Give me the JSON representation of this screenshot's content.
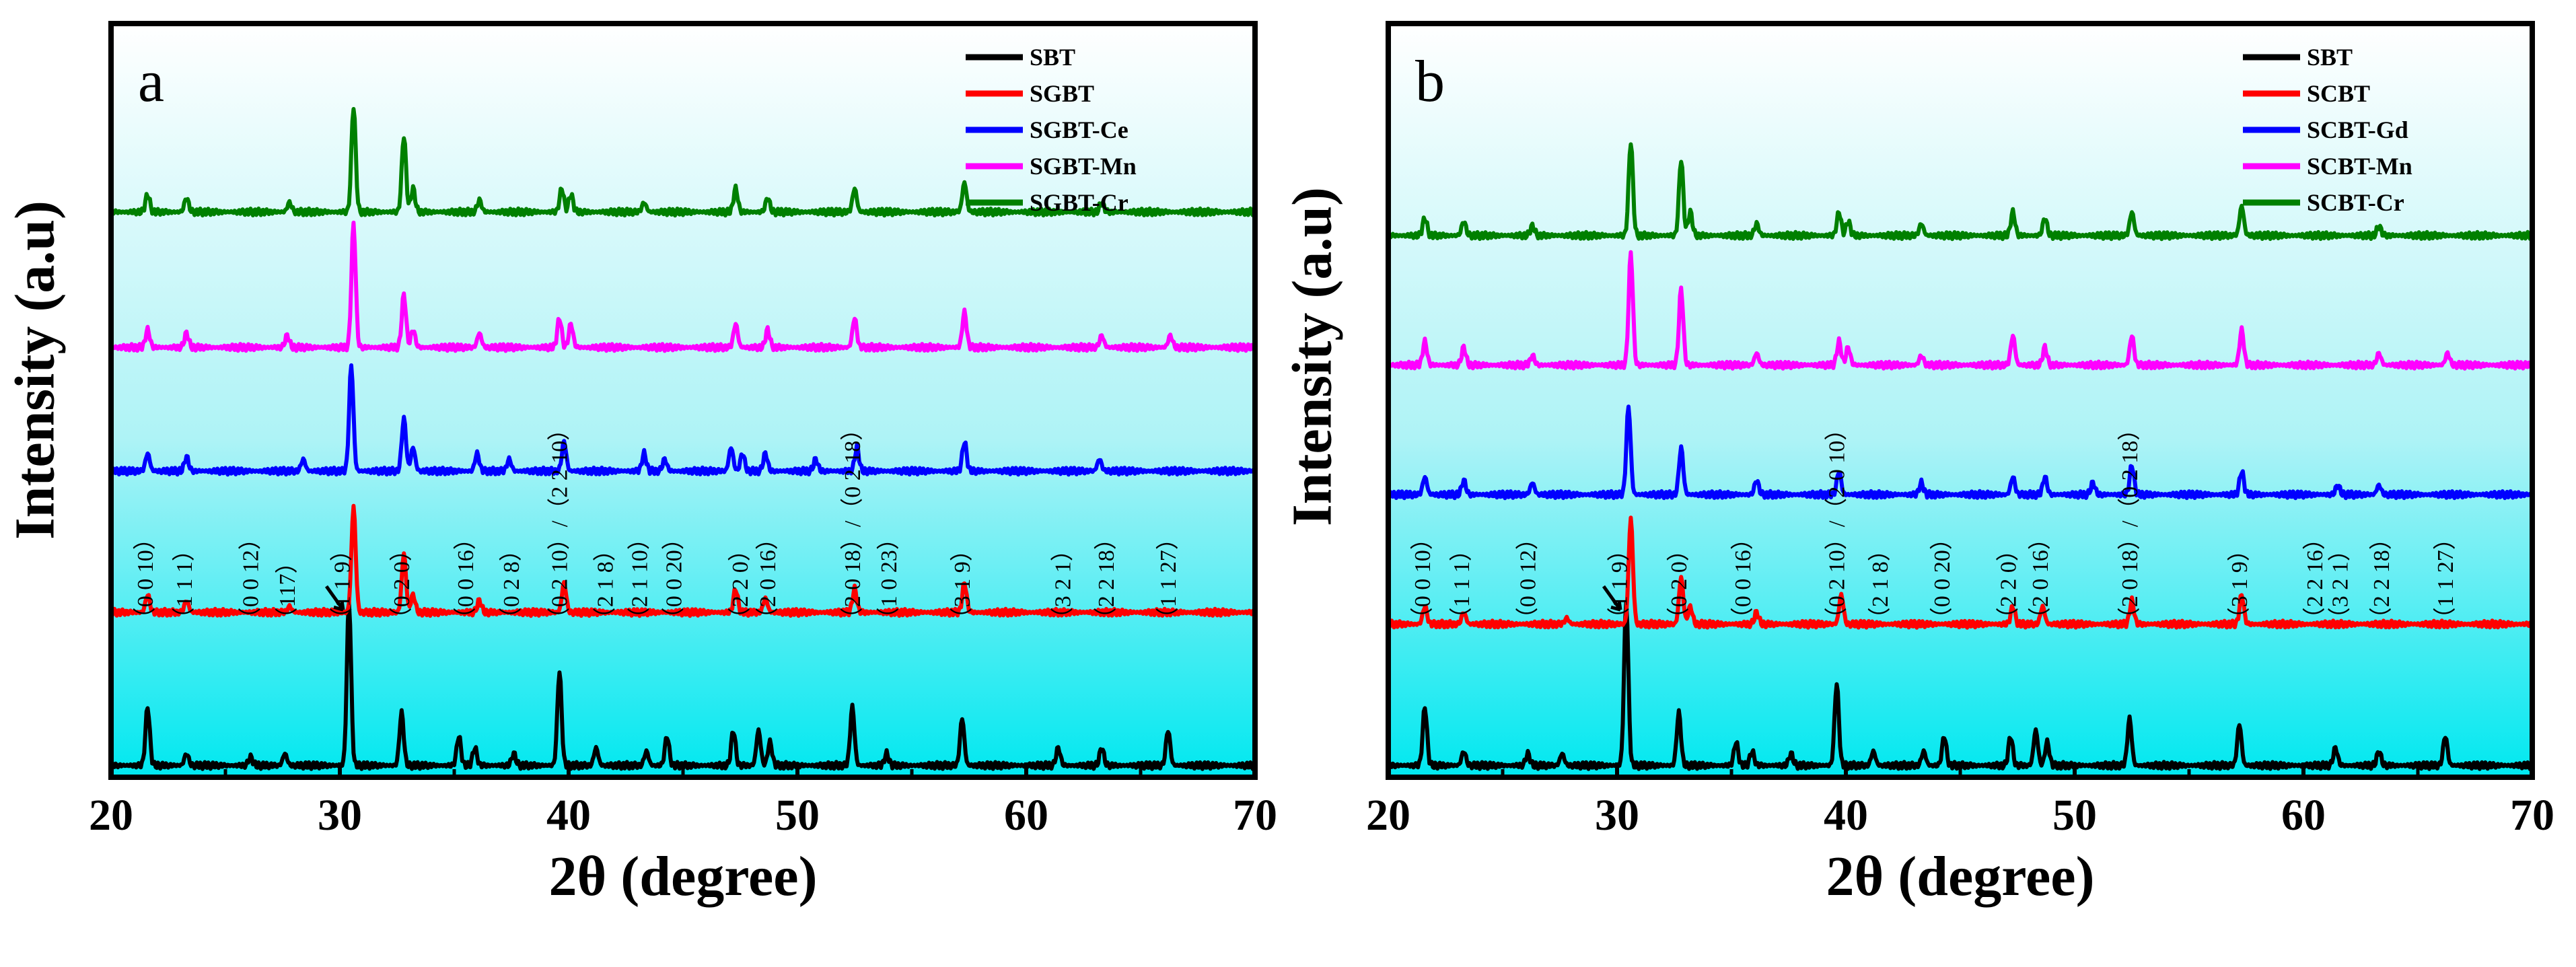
{
  "chart_data": [
    {
      "type": "line",
      "panel_label": "a",
      "xlabel": "2θ  (degree)",
      "ylabel": "Intensity  (a.u)",
      "xlim": [
        20,
        70
      ],
      "xticks": [
        20,
        30,
        40,
        50,
        60,
        70
      ],
      "xtick_labels": [
        "20",
        "30",
        "40",
        "50",
        "60",
        "70"
      ],
      "ylim": [
        0,
        6.4
      ],
      "legend_position": "top-right",
      "grid": false,
      "background": "gradient cyan (bottom) to white (top)",
      "series": [
        {
          "name": "SBT",
          "color": "#000000",
          "offset": 0.0,
          "baseline": 0.1,
          "peaks": [
            [
              21.6,
              0.5
            ],
            [
              23.3,
              0.1
            ],
            [
              26.1,
              0.07
            ],
            [
              27.6,
              0.1
            ],
            [
              30.4,
              1.4
            ],
            [
              32.7,
              0.45
            ],
            [
              35.2,
              0.25
            ],
            [
              35.9,
              0.15
            ],
            [
              37.6,
              0.1
            ],
            [
              39.6,
              0.8
            ],
            [
              41.2,
              0.15
            ],
            [
              43.4,
              0.12
            ],
            [
              44.3,
              0.25
            ],
            [
              47.2,
              0.3
            ],
            [
              48.3,
              0.3
            ],
            [
              48.8,
              0.2
            ],
            [
              52.4,
              0.5
            ],
            [
              53.9,
              0.1
            ],
            [
              57.2,
              0.4
            ],
            [
              61.4,
              0.15
            ],
            [
              63.3,
              0.15
            ],
            [
              66.2,
              0.3
            ]
          ]
        },
        {
          "name": "SGBT",
          "color": "#ff0000",
          "offset": 1.3,
          "baseline": 0.1,
          "peaks": [
            [
              21.6,
              0.15
            ],
            [
              23.3,
              0.1
            ],
            [
              27.8,
              0.05
            ],
            [
              30.6,
              0.9
            ],
            [
              32.8,
              0.5
            ],
            [
              33.2,
              0.15
            ],
            [
              36.1,
              0.1
            ],
            [
              39.8,
              0.25
            ],
            [
              47.3,
              0.2
            ],
            [
              48.6,
              0.12
            ],
            [
              52.5,
              0.2
            ],
            [
              57.3,
              0.25
            ]
          ]
        },
        {
          "name": "SGBT-Ce",
          "color": "#0000ff",
          "offset": 2.5,
          "baseline": 0.1,
          "peaks": [
            [
              21.6,
              0.15
            ],
            [
              23.3,
              0.12
            ],
            [
              28.4,
              0.1
            ],
            [
              30.5,
              0.9
            ],
            [
              32.8,
              0.45
            ],
            [
              33.2,
              0.2
            ],
            [
              36.0,
              0.15
            ],
            [
              37.4,
              0.1
            ],
            [
              39.8,
              0.25
            ],
            [
              43.3,
              0.15
            ],
            [
              44.2,
              0.1
            ],
            [
              47.1,
              0.2
            ],
            [
              47.6,
              0.15
            ],
            [
              48.6,
              0.15
            ],
            [
              50.8,
              0.1
            ],
            [
              52.6,
              0.2
            ],
            [
              57.3,
              0.25
            ],
            [
              63.2,
              0.1
            ]
          ]
        },
        {
          "name": "SGBT-Mn",
          "color": "#ff00ff",
          "offset": 3.55,
          "baseline": 0.1,
          "peaks": [
            [
              21.6,
              0.15
            ],
            [
              23.3,
              0.12
            ],
            [
              27.7,
              0.1
            ],
            [
              30.6,
              1.05
            ],
            [
              32.8,
              0.45
            ],
            [
              33.2,
              0.15
            ],
            [
              36.1,
              0.12
            ],
            [
              39.6,
              0.25
            ],
            [
              40.1,
              0.2
            ],
            [
              47.3,
              0.2
            ],
            [
              48.7,
              0.15
            ],
            [
              52.5,
              0.25
            ],
            [
              57.3,
              0.3
            ],
            [
              63.3,
              0.1
            ],
            [
              66.3,
              0.1
            ]
          ]
        },
        {
          "name": "SGBT-Cr",
          "color": "#008000",
          "offset": 4.7,
          "baseline": 0.1,
          "peaks": [
            [
              21.6,
              0.15
            ],
            [
              23.3,
              0.12
            ],
            [
              27.8,
              0.08
            ],
            [
              30.6,
              0.9
            ],
            [
              32.8,
              0.65
            ],
            [
              33.2,
              0.2
            ],
            [
              36.1,
              0.1
            ],
            [
              39.7,
              0.2
            ],
            [
              40.1,
              0.15
            ],
            [
              43.3,
              0.08
            ],
            [
              47.3,
              0.2
            ],
            [
              48.7,
              0.12
            ],
            [
              52.5,
              0.2
            ],
            [
              57.3,
              0.25
            ],
            [
              63.3,
              0.08
            ]
          ]
        }
      ],
      "annotations": [
        {
          "text": "（0 0 10）",
          "x": 21.6
        },
        {
          "text": "（1 1 1）",
          "x": 23.3
        },
        {
          "text": "（0 0 12）",
          "x": 26.2
        },
        {
          "text": "（117）",
          "x": 27.8
        },
        {
          "text": "（1 1 9）",
          "x": 30.2
        },
        {
          "text": "（0 2 0）",
          "x": 32.8
        },
        {
          "text": "（0 0 16）",
          "x": 35.6
        },
        {
          "text": "（0 2 8）",
          "x": 37.6
        },
        {
          "text": "（0 2 10）/（2 2 10）",
          "x": 39.7
        },
        {
          "text": "（2 1 8）",
          "x": 41.7
        },
        {
          "text": "（2 1 10）",
          "x": 43.2
        },
        {
          "text": "（0 0 20）",
          "x": 44.7
        },
        {
          "text": "（2 2 0）",
          "x": 47.6
        },
        {
          "text": "（2 0 16）",
          "x": 48.8
        },
        {
          "text": "（2 0 18）/（0 2 18）",
          "x": 52.5
        },
        {
          "text": "（1 0 23）",
          "x": 54.1
        },
        {
          "text": "（3 1 9）",
          "x": 57.3
        },
        {
          "text": "（3 2 1）",
          "x": 61.7
        },
        {
          "text": "（2 2 18）",
          "x": 63.6
        },
        {
          "text": "（1 1 27）",
          "x": 66.3
        }
      ]
    },
    {
      "type": "line",
      "panel_label": "b",
      "xlabel": "2θ  (degree)",
      "ylabel": "Intensity  (a.u)",
      "xlim": [
        20,
        70
      ],
      "xticks": [
        20,
        30,
        40,
        50,
        60,
        70
      ],
      "xtick_labels": [
        "20",
        "30",
        "40",
        "50",
        "60",
        "70"
      ],
      "ylim": [
        0,
        6.4
      ],
      "legend_position": "top-right",
      "grid": false,
      "background": "gradient cyan (bottom) to white (top)",
      "series": [
        {
          "name": "SBT",
          "color": "#000000",
          "offset": 0.0,
          "baseline": 0.1,
          "peaks": [
            [
              21.6,
              0.5
            ],
            [
              23.3,
              0.12
            ],
            [
              26.1,
              0.1
            ],
            [
              27.6,
              0.1
            ],
            [
              30.4,
              1.4
            ],
            [
              32.7,
              0.45
            ],
            [
              35.2,
              0.2
            ],
            [
              35.9,
              0.12
            ],
            [
              37.6,
              0.1
            ],
            [
              39.6,
              0.7
            ],
            [
              41.2,
              0.12
            ],
            [
              43.4,
              0.12
            ],
            [
              44.3,
              0.25
            ],
            [
              47.2,
              0.25
            ],
            [
              48.3,
              0.3
            ],
            [
              48.8,
              0.2
            ],
            [
              52.4,
              0.4
            ],
            [
              57.2,
              0.35
            ],
            [
              61.4,
              0.15
            ],
            [
              63.3,
              0.12
            ],
            [
              66.2,
              0.25
            ]
          ]
        },
        {
          "name": "SCBT",
          "color": "#ff0000",
          "offset": 1.2,
          "baseline": 0.1,
          "peaks": [
            [
              21.6,
              0.15
            ],
            [
              23.3,
              0.1
            ],
            [
              27.8,
              0.05
            ],
            [
              30.6,
              0.9
            ],
            [
              32.8,
              0.4
            ],
            [
              33.2,
              0.15
            ],
            [
              36.1,
              0.1
            ],
            [
              39.8,
              0.25
            ],
            [
              47.3,
              0.15
            ],
            [
              48.6,
              0.15
            ],
            [
              52.5,
              0.2
            ],
            [
              57.3,
              0.25
            ]
          ]
        },
        {
          "name": "SCBT-Gd",
          "color": "#0000ff",
          "offset": 2.3,
          "baseline": 0.1,
          "peaks": [
            [
              21.6,
              0.15
            ],
            [
              23.3,
              0.12
            ],
            [
              26.3,
              0.1
            ],
            [
              30.5,
              0.75
            ],
            [
              32.8,
              0.4
            ],
            [
              36.1,
              0.12
            ],
            [
              39.7,
              0.2
            ],
            [
              43.3,
              0.1
            ],
            [
              47.3,
              0.15
            ],
            [
              48.7,
              0.15
            ],
            [
              50.8,
              0.1
            ],
            [
              52.5,
              0.25
            ],
            [
              57.3,
              0.2
            ],
            [
              61.5,
              0.08
            ],
            [
              63.3,
              0.08
            ]
          ]
        },
        {
          "name": "SCBT-Mn",
          "color": "#ff00ff",
          "offset": 3.4,
          "baseline": 0.1,
          "peaks": [
            [
              21.6,
              0.2
            ],
            [
              23.3,
              0.15
            ],
            [
              26.3,
              0.08
            ],
            [
              30.6,
              0.95
            ],
            [
              32.8,
              0.65
            ],
            [
              36.1,
              0.1
            ],
            [
              39.7,
              0.2
            ],
            [
              40.1,
              0.15
            ],
            [
              43.3,
              0.08
            ],
            [
              47.3,
              0.25
            ],
            [
              48.7,
              0.15
            ],
            [
              52.5,
              0.25
            ],
            [
              57.3,
              0.3
            ],
            [
              63.3,
              0.1
            ],
            [
              66.3,
              0.1
            ]
          ]
        },
        {
          "name": "SCBT-Cr",
          "color": "#008000",
          "offset": 4.5,
          "baseline": 0.1,
          "peaks": [
            [
              21.6,
              0.15
            ],
            [
              23.3,
              0.12
            ],
            [
              26.3,
              0.08
            ],
            [
              30.6,
              0.8
            ],
            [
              32.8,
              0.65
            ],
            [
              33.2,
              0.2
            ],
            [
              36.1,
              0.1
            ],
            [
              39.7,
              0.2
            ],
            [
              40.1,
              0.12
            ],
            [
              43.3,
              0.1
            ],
            [
              47.3,
              0.2
            ],
            [
              48.7,
              0.15
            ],
            [
              52.5,
              0.2
            ],
            [
              57.3,
              0.25
            ],
            [
              63.3,
              0.08
            ]
          ]
        }
      ],
      "annotations": [
        {
          "text": "（0 0 10）",
          "x": 21.6
        },
        {
          "text": "（1 1 1）",
          "x": 23.3
        },
        {
          "text": "（0 0 12）",
          "x": 26.2
        },
        {
          "text": "（1 1 9）",
          "x": 30.2
        },
        {
          "text": "（0 2 0）",
          "x": 32.8
        },
        {
          "text": "（0 0 16）",
          "x": 35.6
        },
        {
          "text": "（0 2 10）/（2 0 10）",
          "x": 39.7
        },
        {
          "text": "（2 1 8）",
          "x": 41.6
        },
        {
          "text": "（0 0 20）",
          "x": 44.3
        },
        {
          "text": "（2 2 0）",
          "x": 47.2
        },
        {
          "text": "（2 0 16）",
          "x": 48.6
        },
        {
          "text": "（2 0 18）/（0 2 18）",
          "x": 52.5
        },
        {
          "text": "（3 1 9）",
          "x": 57.3
        },
        {
          "text": "（2 2 16）",
          "x": 60.6
        },
        {
          "text": "（3 2 1）",
          "x": 61.7
        },
        {
          "text": "（2 2 18）",
          "x": 63.5
        },
        {
          "text": "（1 1 27）",
          "x": 66.3
        }
      ]
    }
  ]
}
